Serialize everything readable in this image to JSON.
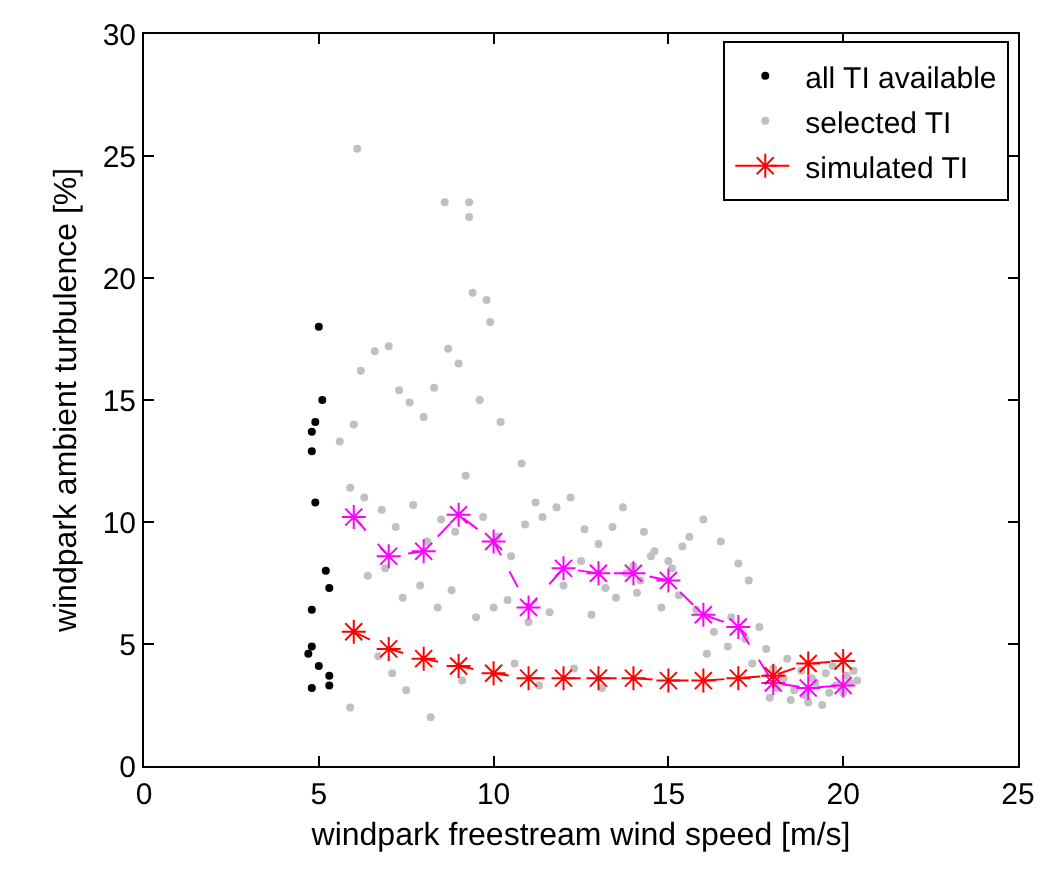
{
  "chart_data": {
    "type": "scatter",
    "xlabel": "windpark freestream wind speed [m/s]",
    "ylabel": "windpark ambient turbulence [%]",
    "xlim": [
      0,
      25
    ],
    "xticks": [
      0,
      5,
      10,
      15,
      20,
      25
    ],
    "ylim": [
      0,
      30
    ],
    "yticks": [
      0,
      5,
      10,
      15,
      20,
      25,
      30
    ],
    "grid": false,
    "legend": "top right",
    "series": [
      {
        "name": "all TI available",
        "marker": "circle",
        "color": "#000000",
        "x": [
          5.0,
          5.1,
          4.9,
          4.8,
          4.8,
          4.9,
          5.2,
          5.3,
          4.8,
          4.8,
          4.7,
          5.0,
          5.3,
          5.3,
          4.8
        ],
        "values": [
          18.0,
          15.0,
          14.1,
          13.7,
          12.9,
          10.8,
          8.0,
          7.3,
          6.4,
          4.9,
          4.6,
          4.1,
          3.7,
          3.3,
          3.2
        ]
      },
      {
        "name": "selected TI",
        "marker": "circle",
        "color": "#c0c0c0",
        "x": [
          6.1,
          8.6,
          9.3,
          9.3,
          9.4,
          9.8,
          9.9,
          5.6,
          6.0,
          6.2,
          6.6,
          7.0,
          7.3,
          7.6,
          8.0,
          8.3,
          8.7,
          9.0,
          9.6,
          10.2,
          10.8,
          11.2,
          5.9,
          6.3,
          6.8,
          7.2,
          7.7,
          8.1,
          8.5,
          8.9,
          9.2,
          9.7,
          10.1,
          10.5,
          10.9,
          11.4,
          11.8,
          12.2,
          12.6,
          6.4,
          6.9,
          7.4,
          7.9,
          8.4,
          8.8,
          9.5,
          10.0,
          10.4,
          11.0,
          11.6,
          12.0,
          12.5,
          13.0,
          13.4,
          13.7,
          14.3,
          14.0,
          14.5,
          15.0,
          15.4,
          13.2,
          13.8,
          14.2,
          14.6,
          15.1,
          15.6,
          16.0,
          16.5,
          17.0,
          17.3,
          12.8,
          13.5,
          14.1,
          14.8,
          15.3,
          15.8,
          16.3,
          16.8,
          17.2,
          17.6,
          16.1,
          16.7,
          17.4,
          17.8,
          18.0,
          18.3,
          18.6,
          18.9,
          19.2,
          19.5,
          19.8,
          20.1,
          20.4,
          18.1,
          18.5,
          18.8,
          19.1,
          19.4,
          19.7,
          20.0,
          20.3,
          17.9,
          18.4,
          19.0,
          19.6,
          20.2,
          6.7,
          7.1,
          5.9,
          7.5,
          8.2,
          9.1,
          10.6,
          11.3,
          12.3,
          13.1
        ],
        "values": [
          25.3,
          23.1,
          23.1,
          22.5,
          19.4,
          19.1,
          18.2,
          13.3,
          14.0,
          16.2,
          17.0,
          17.2,
          15.4,
          14.9,
          14.3,
          15.5,
          17.1,
          16.5,
          15.0,
          14.1,
          12.4,
          10.8,
          11.4,
          11.0,
          10.5,
          9.8,
          10.7,
          9.2,
          10.1,
          9.6,
          11.9,
          10.2,
          9.4,
          8.6,
          9.9,
          10.2,
          10.6,
          11.0,
          9.7,
          7.8,
          8.1,
          6.9,
          7.4,
          6.5,
          7.2,
          6.1,
          6.5,
          6.8,
          5.9,
          6.3,
          7.4,
          8.4,
          9.1,
          9.8,
          10.6,
          9.6,
          8.2,
          8.6,
          8.4,
          9.0,
          7.3,
          7.9,
          7.6,
          8.8,
          8.1,
          9.4,
          10.1,
          9.2,
          8.3,
          7.6,
          6.2,
          6.9,
          7.1,
          6.5,
          7.0,
          6.4,
          5.5,
          6.1,
          5.2,
          5.7,
          4.6,
          4.9,
          4.2,
          4.8,
          4.0,
          3.6,
          3.1,
          2.9,
          3.4,
          3.8,
          3.3,
          3.7,
          3.5,
          3.2,
          2.7,
          3.9,
          3.6,
          2.5,
          4.1,
          3.0,
          3.9,
          2.8,
          4.4,
          2.6,
          3.0,
          3.4,
          4.5,
          3.8,
          2.4,
          3.1,
          2.0,
          3.5,
          4.2,
          3.3,
          4.0,
          3.2
        ]
      },
      {
        "type": "line",
        "marker": "cross",
        "line_style": "dashed",
        "color": "#ff00ff",
        "x": [
          6,
          7,
          8,
          9,
          10,
          11,
          12,
          13,
          14,
          15,
          16,
          17,
          18,
          19,
          20
        ],
        "values": [
          10.2,
          8.6,
          8.8,
          10.3,
          9.2,
          6.5,
          8.1,
          7.9,
          7.9,
          7.6,
          6.2,
          5.7,
          3.4,
          3.2,
          3.3
        ]
      },
      {
        "name": "simulated TI",
        "type": "line",
        "marker": "cross",
        "line_style": "dashed",
        "color": "#ff0000",
        "x": [
          6,
          7,
          8,
          9,
          10,
          11,
          12,
          13,
          14,
          15,
          16,
          17,
          18,
          19,
          20
        ],
        "values": [
          5.5,
          4.8,
          4.4,
          4.1,
          3.8,
          3.6,
          3.6,
          3.6,
          3.6,
          3.5,
          3.5,
          3.6,
          3.7,
          4.2,
          4.3
        ]
      }
    ]
  }
}
